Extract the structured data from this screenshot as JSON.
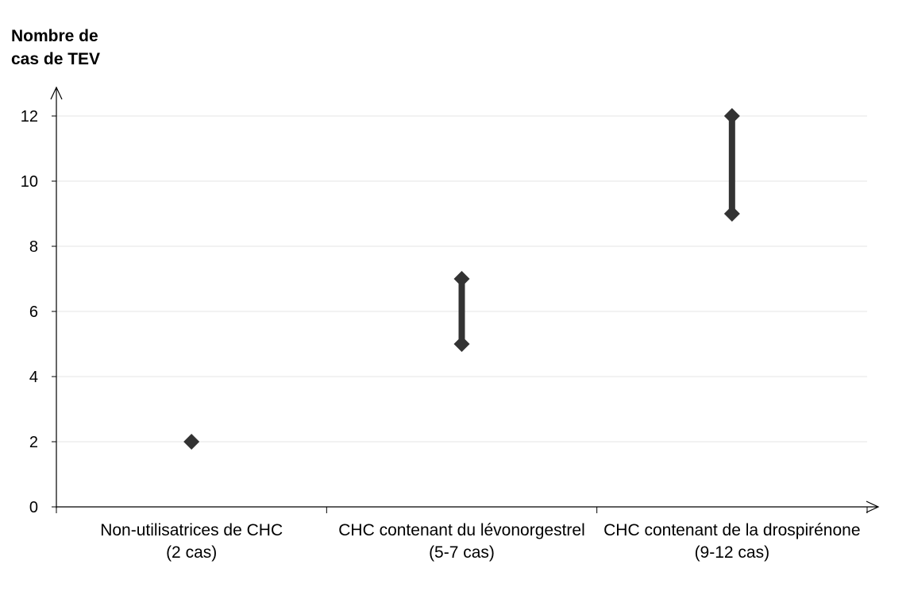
{
  "chart_data": {
    "type": "range",
    "ylabel_lines": [
      "Nombre de",
      "cas de TEV"
    ],
    "ylim": [
      0,
      12
    ],
    "yticks": [
      0,
      2,
      4,
      6,
      8,
      10,
      12
    ],
    "grid": true,
    "categories": [
      {
        "label_lines": [
          "Non-utilisatrices de CHC",
          "(2 cas)"
        ],
        "low": 2,
        "high": 2
      },
      {
        "label_lines": [
          "CHC contenant du lévonorgestrel",
          "(5-7 cas)"
        ],
        "low": 5,
        "high": 7
      },
      {
        "label_lines": [
          "CHC contenant de la drospirénone",
          "(9-12 cas)"
        ],
        "low": 9,
        "high": 12
      }
    ],
    "colors": {
      "marker": "#333333",
      "axis": "#000000",
      "grid": "#e6e6e6"
    }
  }
}
